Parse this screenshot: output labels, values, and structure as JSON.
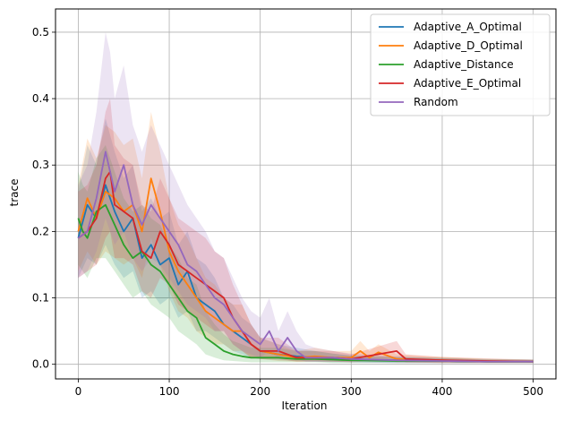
{
  "chart_data": {
    "type": "line",
    "title": "",
    "xlabel": "Iteration",
    "ylabel": "trace",
    "xlim": [
      -25,
      525
    ],
    "ylim": [
      -0.022,
      0.535
    ],
    "xticks": [
      0,
      100,
      200,
      300,
      400,
      500
    ],
    "xtick_labels": [
      "0",
      "100",
      "200",
      "300",
      "400",
      "500"
    ],
    "yticks": [
      0.0,
      0.1,
      0.2,
      0.3,
      0.4,
      0.5
    ],
    "ytick_labels": [
      "0.0",
      "0.1",
      "0.2",
      "0.3",
      "0.4",
      "0.5"
    ],
    "grid": true,
    "legend_position": "top-right",
    "series": [
      {
        "name": "Adaptive_A_Optimal",
        "color": "#1f77b4",
        "x": [
          0,
          10,
          20,
          30,
          40,
          50,
          60,
          70,
          80,
          90,
          100,
          110,
          120,
          130,
          140,
          150,
          160,
          170,
          180,
          190,
          200,
          220,
          240,
          260,
          280,
          300,
          350,
          400,
          450,
          500
        ],
        "y": [
          0.19,
          0.24,
          0.22,
          0.27,
          0.23,
          0.2,
          0.22,
          0.16,
          0.18,
          0.15,
          0.16,
          0.12,
          0.14,
          0.1,
          0.09,
          0.08,
          0.06,
          0.05,
          0.04,
          0.03,
          0.02,
          0.015,
          0.012,
          0.01,
          0.008,
          0.007,
          0.006,
          0.005,
          0.004,
          0.004
        ],
        "lower": [
          0.13,
          0.16,
          0.15,
          0.18,
          0.15,
          0.13,
          0.14,
          0.1,
          0.11,
          0.09,
          0.1,
          0.07,
          0.08,
          0.05,
          0.05,
          0.04,
          0.03,
          0.02,
          0.015,
          0.01,
          0.008,
          0.006,
          0.005,
          0.004,
          0.003,
          0.003,
          0.002,
          0.002,
          0.002,
          0.002
        ],
        "upper": [
          0.26,
          0.33,
          0.3,
          0.37,
          0.32,
          0.28,
          0.3,
          0.23,
          0.25,
          0.22,
          0.23,
          0.18,
          0.2,
          0.16,
          0.15,
          0.13,
          0.1,
          0.09,
          0.07,
          0.06,
          0.04,
          0.03,
          0.025,
          0.02,
          0.016,
          0.013,
          0.011,
          0.009,
          0.007,
          0.007
        ]
      },
      {
        "name": "Adaptive_D_Optimal",
        "color": "#ff7f0e",
        "x": [
          0,
          10,
          20,
          30,
          40,
          50,
          60,
          70,
          80,
          90,
          100,
          110,
          120,
          130,
          140,
          150,
          160,
          170,
          180,
          190,
          200,
          220,
          240,
          260,
          280,
          300,
          310,
          320,
          330,
          350,
          400,
          450,
          500
        ],
        "y": [
          0.2,
          0.25,
          0.22,
          0.26,
          0.25,
          0.23,
          0.24,
          0.2,
          0.28,
          0.23,
          0.17,
          0.14,
          0.12,
          0.1,
          0.08,
          0.07,
          0.06,
          0.05,
          0.05,
          0.03,
          0.02,
          0.015,
          0.01,
          0.012,
          0.01,
          0.01,
          0.02,
          0.01,
          0.018,
          0.008,
          0.006,
          0.004,
          0.004
        ],
        "lower": [
          0.14,
          0.17,
          0.15,
          0.17,
          0.16,
          0.15,
          0.16,
          0.13,
          0.19,
          0.15,
          0.11,
          0.08,
          0.07,
          0.05,
          0.04,
          0.03,
          0.03,
          0.02,
          0.02,
          0.01,
          0.008,
          0.005,
          0.004,
          0.005,
          0.004,
          0.004,
          0.008,
          0.004,
          0.007,
          0.003,
          0.002,
          0.002,
          0.002
        ],
        "upper": [
          0.27,
          0.34,
          0.31,
          0.36,
          0.35,
          0.33,
          0.34,
          0.28,
          0.38,
          0.32,
          0.25,
          0.21,
          0.19,
          0.16,
          0.13,
          0.12,
          0.1,
          0.09,
          0.09,
          0.06,
          0.04,
          0.03,
          0.02,
          0.025,
          0.02,
          0.02,
          0.035,
          0.02,
          0.03,
          0.015,
          0.011,
          0.008,
          0.007
        ]
      },
      {
        "name": "Adaptive_Distance",
        "color": "#2ca02c",
        "x": [
          0,
          5,
          10,
          20,
          30,
          40,
          50,
          60,
          70,
          80,
          90,
          100,
          110,
          120,
          130,
          140,
          150,
          160,
          170,
          180,
          190,
          200,
          220,
          240,
          260,
          280,
          300,
          350,
          400,
          450,
          500
        ],
        "y": [
          0.22,
          0.2,
          0.19,
          0.23,
          0.24,
          0.21,
          0.18,
          0.16,
          0.17,
          0.15,
          0.14,
          0.12,
          0.1,
          0.08,
          0.07,
          0.04,
          0.03,
          0.02,
          0.015,
          0.012,
          0.01,
          0.01,
          0.01,
          0.008,
          0.008,
          0.007,
          0.006,
          0.005,
          0.005,
          0.004,
          0.004
        ],
        "lower": [
          0.15,
          0.14,
          0.13,
          0.16,
          0.16,
          0.14,
          0.12,
          0.1,
          0.11,
          0.09,
          0.08,
          0.07,
          0.05,
          0.04,
          0.03,
          0.015,
          0.01,
          0.006,
          0.005,
          0.004,
          0.003,
          0.003,
          0.003,
          0.003,
          0.003,
          0.002,
          0.002,
          0.002,
          0.002,
          0.002,
          0.002
        ],
        "upper": [
          0.29,
          0.27,
          0.26,
          0.31,
          0.33,
          0.29,
          0.25,
          0.23,
          0.24,
          0.22,
          0.21,
          0.18,
          0.16,
          0.13,
          0.12,
          0.08,
          0.06,
          0.045,
          0.035,
          0.03,
          0.025,
          0.025,
          0.025,
          0.02,
          0.02,
          0.016,
          0.013,
          0.011,
          0.01,
          0.008,
          0.007
        ]
      },
      {
        "name": "Adaptive_E_Optimal",
        "color": "#d62728",
        "x": [
          0,
          10,
          20,
          30,
          35,
          40,
          50,
          60,
          70,
          80,
          90,
          100,
          110,
          120,
          130,
          140,
          150,
          160,
          170,
          180,
          190,
          200,
          220,
          240,
          260,
          280,
          300,
          350,
          360,
          400,
          450,
          500
        ],
        "y": [
          0.19,
          0.2,
          0.22,
          0.28,
          0.29,
          0.24,
          0.23,
          0.22,
          0.17,
          0.16,
          0.2,
          0.18,
          0.15,
          0.14,
          0.13,
          0.12,
          0.11,
          0.1,
          0.07,
          0.05,
          0.03,
          0.02,
          0.02,
          0.01,
          0.01,
          0.01,
          0.008,
          0.02,
          0.008,
          0.006,
          0.005,
          0.004
        ],
        "lower": [
          0.13,
          0.14,
          0.15,
          0.19,
          0.2,
          0.16,
          0.16,
          0.15,
          0.11,
          0.1,
          0.13,
          0.12,
          0.09,
          0.08,
          0.07,
          0.06,
          0.05,
          0.05,
          0.03,
          0.02,
          0.01,
          0.008,
          0.008,
          0.004,
          0.004,
          0.004,
          0.003,
          0.008,
          0.003,
          0.002,
          0.002,
          0.002
        ],
        "upper": [
          0.26,
          0.27,
          0.3,
          0.38,
          0.4,
          0.33,
          0.31,
          0.3,
          0.24,
          0.23,
          0.28,
          0.25,
          0.22,
          0.21,
          0.2,
          0.19,
          0.17,
          0.16,
          0.12,
          0.09,
          0.06,
          0.04,
          0.04,
          0.02,
          0.02,
          0.02,
          0.015,
          0.035,
          0.015,
          0.011,
          0.009,
          0.007
        ]
      },
      {
        "name": "Random",
        "color": "#9467bd",
        "x": [
          0,
          10,
          20,
          30,
          35,
          40,
          50,
          60,
          70,
          80,
          90,
          100,
          110,
          120,
          130,
          140,
          150,
          160,
          170,
          180,
          190,
          200,
          210,
          220,
          230,
          240,
          250,
          260,
          280,
          300,
          350,
          400,
          450,
          500
        ],
        "y": [
          0.19,
          0.2,
          0.25,
          0.32,
          0.29,
          0.26,
          0.3,
          0.24,
          0.21,
          0.24,
          0.22,
          0.2,
          0.18,
          0.15,
          0.14,
          0.12,
          0.1,
          0.09,
          0.07,
          0.05,
          0.04,
          0.03,
          0.05,
          0.02,
          0.04,
          0.02,
          0.01,
          0.01,
          0.01,
          0.008,
          0.006,
          0.005,
          0.004,
          0.004
        ],
        "lower": [
          0.13,
          0.14,
          0.17,
          0.22,
          0.2,
          0.18,
          0.2,
          0.16,
          0.14,
          0.16,
          0.15,
          0.13,
          0.11,
          0.09,
          0.08,
          0.07,
          0.05,
          0.05,
          0.03,
          0.02,
          0.015,
          0.01,
          0.02,
          0.008,
          0.015,
          0.008,
          0.004,
          0.004,
          0.004,
          0.003,
          0.002,
          0.002,
          0.002,
          0.002
        ],
        "upper": [
          0.27,
          0.3,
          0.38,
          0.5,
          0.47,
          0.4,
          0.45,
          0.36,
          0.32,
          0.36,
          0.33,
          0.3,
          0.27,
          0.24,
          0.22,
          0.2,
          0.17,
          0.16,
          0.13,
          0.1,
          0.08,
          0.07,
          0.1,
          0.05,
          0.08,
          0.05,
          0.03,
          0.025,
          0.02,
          0.016,
          0.012,
          0.009,
          0.007,
          0.007
        ]
      }
    ]
  }
}
